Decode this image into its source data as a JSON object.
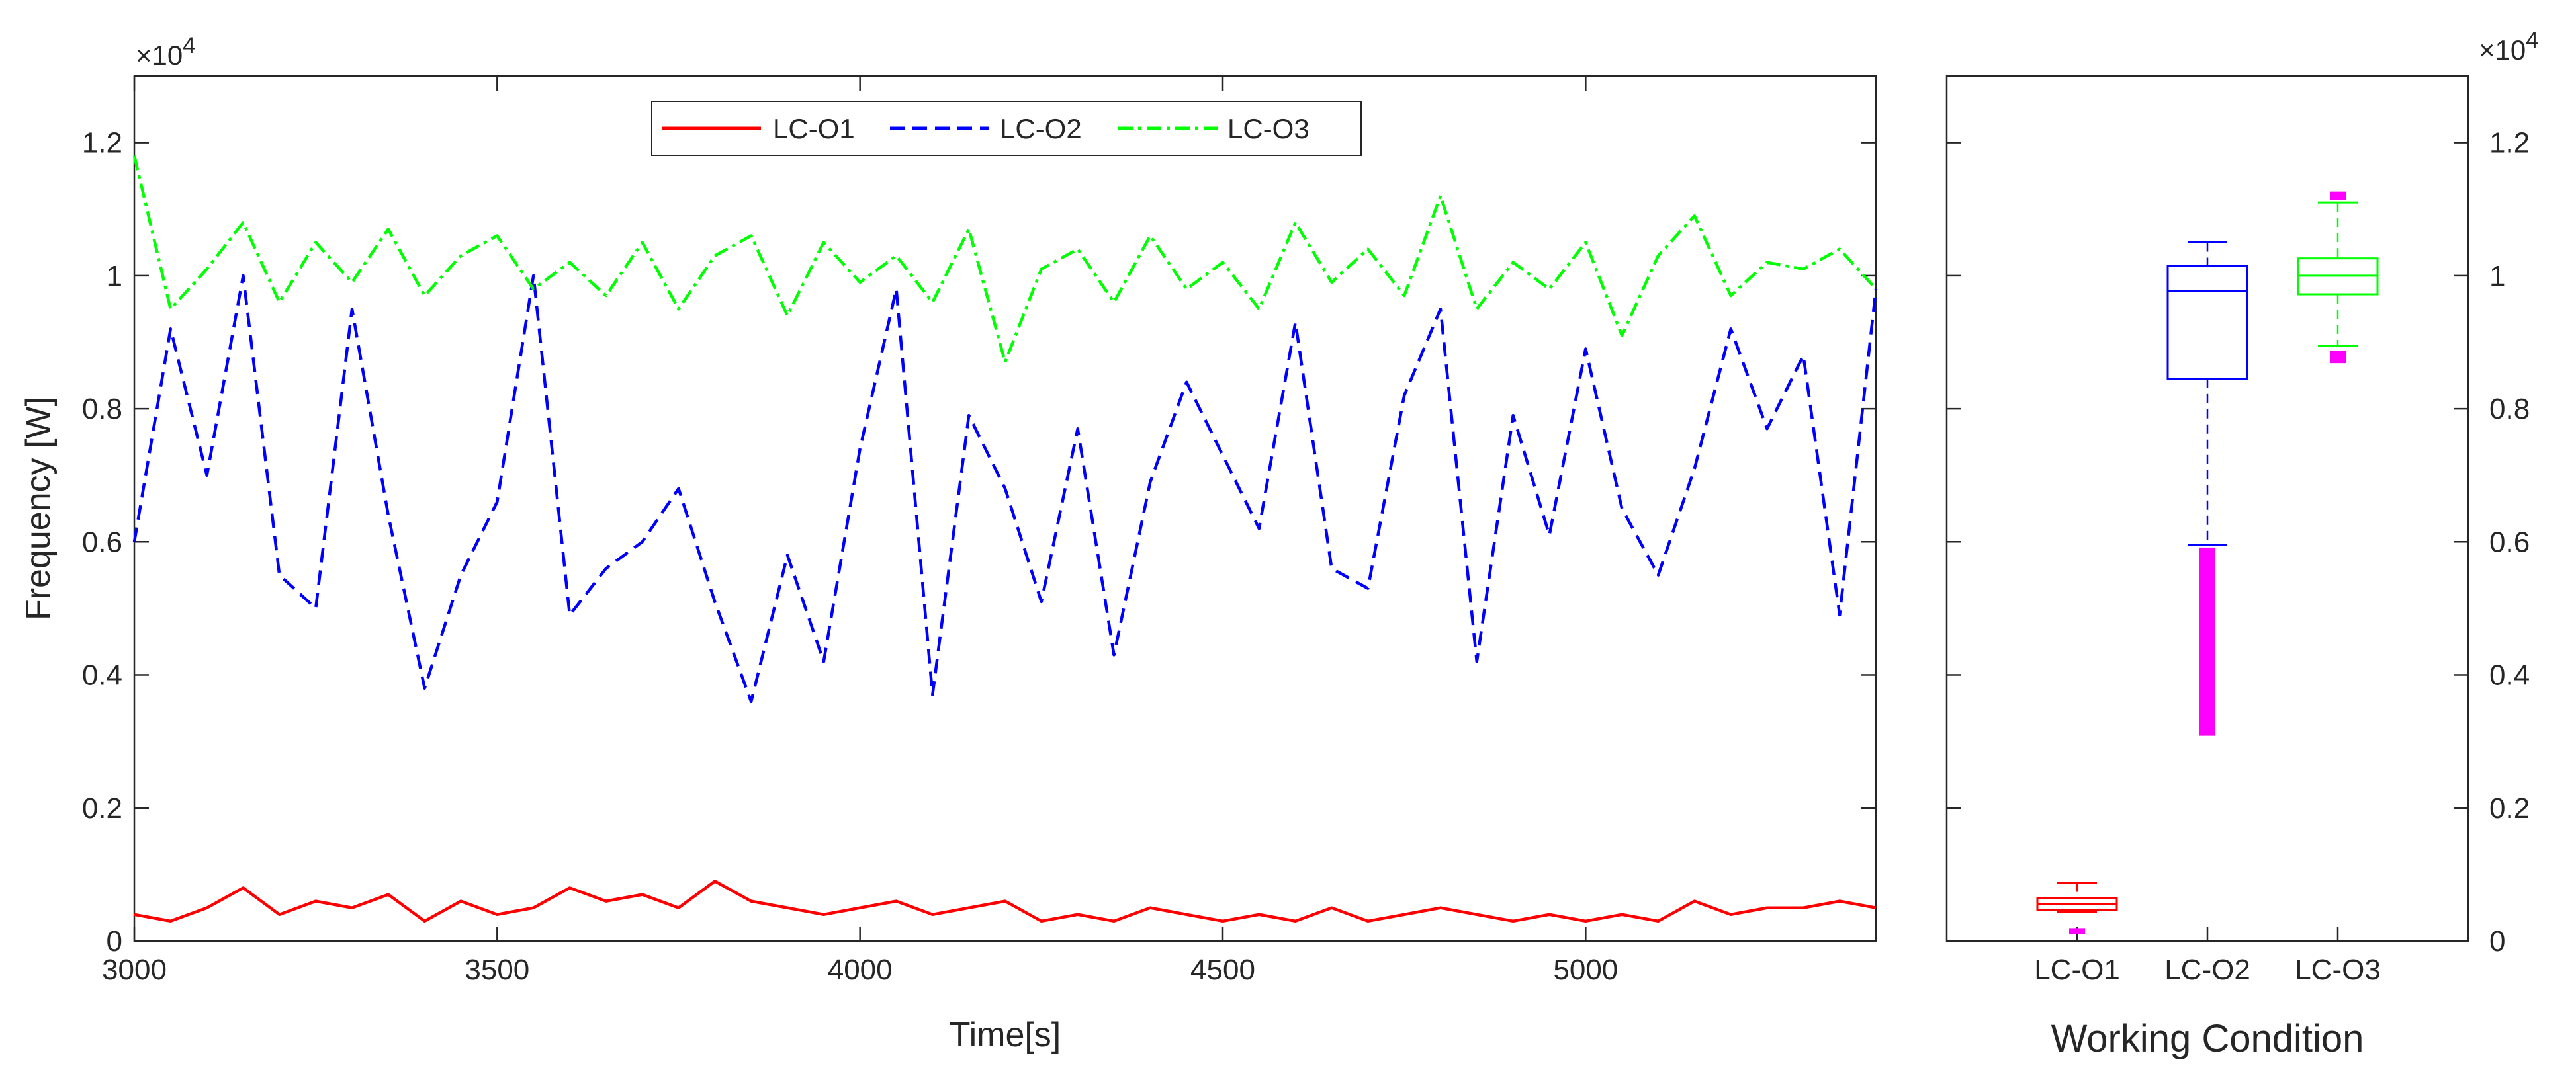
{
  "chart_data": [
    {
      "type": "line",
      "xlabel": "Time[s]",
      "ylabel": "Frequency [W]",
      "y_multiplier": "×10",
      "y_multiplier_exp": "4",
      "xlim": [
        3000,
        5400
      ],
      "ylim": [
        0,
        1.3
      ],
      "x_ticks": [
        3000,
        3500,
        4000,
        4500,
        5000
      ],
      "x_tick_labels": [
        "3000",
        "3500",
        "4000",
        "4500",
        "5000"
      ],
      "y_ticks": [
        0,
        0.2,
        0.4,
        0.6,
        0.8,
        1,
        1.2
      ],
      "y_tick_labels": [
        "0",
        "0.2",
        "0.4",
        "0.6",
        "0.8",
        "1",
        "1.2"
      ],
      "grid": false,
      "legend_placement": "top-center",
      "legend_orientation": "horizontal",
      "series": [
        {
          "name": "LC-O1",
          "color": "#ff0000",
          "style": "solid",
          "x": [
            3000,
            3050,
            3100,
            3150,
            3200,
            3250,
            3300,
            3350,
            3400,
            3450,
            3500,
            3550,
            3600,
            3650,
            3700,
            3750,
            3800,
            3850,
            3900,
            3950,
            4000,
            4050,
            4100,
            4150,
            4200,
            4250,
            4300,
            4350,
            4400,
            4450,
            4500,
            4550,
            4600,
            4650,
            4700,
            4750,
            4800,
            4850,
            4900,
            4950,
            5000,
            5050,
            5100,
            5150,
            5200,
            5250,
            5300,
            5350,
            5400
          ],
          "y": [
            0.04,
            0.03,
            0.05,
            0.08,
            0.04,
            0.06,
            0.05,
            0.07,
            0.03,
            0.06,
            0.04,
            0.05,
            0.08,
            0.06,
            0.07,
            0.05,
            0.09,
            0.06,
            0.05,
            0.04,
            0.05,
            0.06,
            0.04,
            0.05,
            0.06,
            0.03,
            0.04,
            0.03,
            0.05,
            0.04,
            0.03,
            0.04,
            0.03,
            0.05,
            0.03,
            0.04,
            0.05,
            0.04,
            0.03,
            0.04,
            0.03,
            0.04,
            0.03,
            0.06,
            0.04,
            0.05,
            0.05,
            0.06,
            0.05
          ]
        },
        {
          "name": "LC-O2",
          "color": "#0000ff",
          "style": "dashed",
          "x": [
            3000,
            3050,
            3100,
            3150,
            3200,
            3250,
            3300,
            3350,
            3400,
            3450,
            3500,
            3550,
            3600,
            3650,
            3700,
            3750,
            3800,
            3850,
            3900,
            3950,
            4000,
            4050,
            4100,
            4150,
            4200,
            4250,
            4300,
            4350,
            4400,
            4450,
            4500,
            4550,
            4600,
            4650,
            4700,
            4750,
            4800,
            4850,
            4900,
            4950,
            5000,
            5050,
            5100,
            5150,
            5200,
            5250,
            5300,
            5350,
            5400
          ],
          "y": [
            0.6,
            0.92,
            0.7,
            1.0,
            0.55,
            0.5,
            0.95,
            0.64,
            0.38,
            0.55,
            0.66,
            1.0,
            0.49,
            0.56,
            0.6,
            0.68,
            0.51,
            0.36,
            0.58,
            0.42,
            0.74,
            0.98,
            0.37,
            0.79,
            0.68,
            0.51,
            0.77,
            0.43,
            0.69,
            0.84,
            0.73,
            0.62,
            0.93,
            0.56,
            0.53,
            0.82,
            0.95,
            0.42,
            0.79,
            0.61,
            0.89,
            0.65,
            0.55,
            0.71,
            0.92,
            0.77,
            0.88,
            0.49,
            0.98
          ]
        },
        {
          "name": "LC-O3",
          "color": "#00ff00",
          "style": "dash-dot",
          "x": [
            3000,
            3050,
            3100,
            3150,
            3200,
            3250,
            3300,
            3350,
            3400,
            3450,
            3500,
            3550,
            3600,
            3650,
            3700,
            3750,
            3800,
            3850,
            3900,
            3950,
            4000,
            4050,
            4100,
            4150,
            4200,
            4250,
            4300,
            4350,
            4400,
            4450,
            4500,
            4550,
            4600,
            4650,
            4700,
            4750,
            4800,
            4850,
            4900,
            4950,
            5000,
            5050,
            5100,
            5150,
            5200,
            5250,
            5300,
            5350,
            5400
          ],
          "y": [
            1.18,
            0.95,
            1.01,
            1.08,
            0.96,
            1.05,
            0.99,
            1.07,
            0.97,
            1.03,
            1.06,
            0.98,
            1.02,
            0.97,
            1.05,
            0.95,
            1.03,
            1.06,
            0.94,
            1.05,
            0.99,
            1.03,
            0.96,
            1.07,
            0.87,
            1.01,
            1.04,
            0.96,
            1.06,
            0.98,
            1.02,
            0.95,
            1.08,
            0.99,
            1.04,
            0.97,
            1.12,
            0.95,
            1.02,
            0.98,
            1.05,
            0.91,
            1.03,
            1.09,
            0.97,
            1.02,
            1.01,
            1.04,
            0.98
          ]
        }
      ]
    },
    {
      "type": "box",
      "xlabel": "Working Condition",
      "ylabel": "",
      "y_multiplier": "×10",
      "y_multiplier_exp": "4",
      "ylim": [
        0,
        1.3
      ],
      "y_ticks": [
        0,
        0.2,
        0.4,
        0.6,
        0.8,
        1,
        1.2
      ],
      "y_tick_labels": [
        "0",
        "0.2",
        "0.4",
        "0.6",
        "0.8",
        "1",
        "1.2"
      ],
      "y_axis_side": "right",
      "categories": [
        "LC-O1",
        "LC-O2",
        "LC-O3"
      ],
      "outlier_color": "#ff00ff",
      "boxes": [
        {
          "name": "LC-O1",
          "color": "#ff0000",
          "lower_whisker": 0.044,
          "q1": 0.047,
          "median": 0.056,
          "q3": 0.065,
          "upper_whisker": 0.088,
          "outliers_low": [
            0.012,
            0.015,
            0.018
          ],
          "outliers_high": []
        },
        {
          "name": "LC-O2",
          "color": "#0000ff",
          "lower_whisker": 0.595,
          "q1": 0.845,
          "median": 0.977,
          "q3": 1.015,
          "upper_whisker": 1.05,
          "outliers_low": [
            0.31,
            0.35,
            0.4,
            0.45,
            0.5,
            0.55,
            0.59
          ],
          "outliers_high": []
        },
        {
          "name": "LC-O3",
          "color": "#00ff00",
          "lower_whisker": 0.895,
          "q1": 0.972,
          "median": 1.0,
          "q3": 1.026,
          "upper_whisker": 1.11,
          "outliers_low": [
            0.87,
            0.88,
            0.885
          ],
          "outliers_high": [
            1.115,
            1.12,
            1.125
          ]
        }
      ]
    }
  ]
}
